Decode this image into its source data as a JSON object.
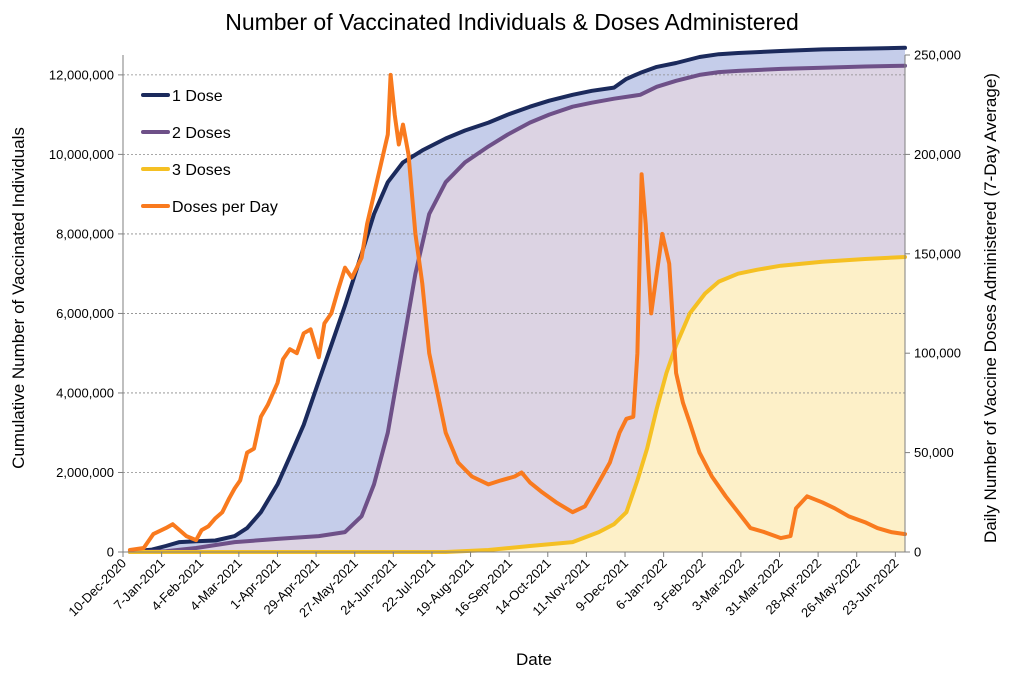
{
  "chart_data": {
    "type": "line",
    "title": "Number of Vaccinated Individuals & Doses Administered",
    "xlabel": "Date",
    "ylabel": "Cumulative Number of Vaccinated Individuals",
    "y2label": "Daily Number of Vaccine Doses Administered (7-Day Average)",
    "x_start": "10-Dec-2020",
    "x_end": "30-Jun-2022",
    "x_ticks": [
      "10-Dec-2020",
      "7-Jan-2021",
      "4-Feb-2021",
      "4-Mar-2021",
      "1-Apr-2021",
      "29-Apr-2021",
      "27-May-2021",
      "24-Jun-2021",
      "22-Jul-2021",
      "19-Aug-2021",
      "16-Sep-2021",
      "14-Oct-2021",
      "11-Nov-2021",
      "9-Dec-2021",
      "6-Jan-2022",
      "3-Feb-2022",
      "3-Mar-2022",
      "31-Mar-2022",
      "28-Apr-2022",
      "26-May-2022",
      "23-Jun-2022"
    ],
    "ylim": [
      0,
      12500000
    ],
    "y_ticks": [
      "0",
      "2,000,000",
      "4,000,000",
      "6,000,000",
      "8,000,000",
      "10,000,000",
      "12,000,000"
    ],
    "y_tick_values": [
      0,
      2000000,
      4000000,
      6000000,
      8000000,
      10000000,
      12000000
    ],
    "y2lim": [
      0,
      250000
    ],
    "y2_ticks": [
      "0",
      "50,000",
      "100,000",
      "150,000",
      "200,000",
      "250,000"
    ],
    "y2_tick_values": [
      0,
      50000,
      100000,
      150000,
      200000,
      250000
    ],
    "grid": "horizontal dotted (left axis)",
    "legend_position": "top-left",
    "series": [
      {
        "name": "1 Dose",
        "axis": "left",
        "color": "#1b2a5c",
        "fill": "#c5cdea",
        "x": [
          "2020-12-15",
          "2020-12-31",
          "2021-01-10",
          "2021-01-20",
          "2021-02-01",
          "2021-02-15",
          "2021-03-01",
          "2021-03-10",
          "2021-03-20",
          "2021-04-01",
          "2021-04-10",
          "2021-04-20",
          "2021-05-01",
          "2021-05-10",
          "2021-05-20",
          "2021-06-01",
          "2021-06-10",
          "2021-06-20",
          "2021-07-01",
          "2021-07-15",
          "2021-08-01",
          "2021-08-15",
          "2021-09-01",
          "2021-09-15",
          "2021-10-01",
          "2021-10-15",
          "2021-11-01",
          "2021-11-15",
          "2021-12-01",
          "2021-12-10",
          "2021-12-20",
          "2022-01-01",
          "2022-01-15",
          "2022-02-01",
          "2022-02-15",
          "2022-03-01",
          "2022-04-01",
          "2022-05-01",
          "2022-06-01",
          "2022-06-30"
        ],
        "values": [
          10000,
          60000,
          150000,
          250000,
          270000,
          290000,
          400000,
          600000,
          1000000,
          1700000,
          2400000,
          3200000,
          4300000,
          5200000,
          6200000,
          7500000,
          8500000,
          9300000,
          9800000,
          10100000,
          10400000,
          10600000,
          10800000,
          11000000,
          11200000,
          11350000,
          11500000,
          11600000,
          11680000,
          11900000,
          12050000,
          12200000,
          12300000,
          12450000,
          12520000,
          12550000,
          12600000,
          12640000,
          12660000,
          12680000
        ]
      },
      {
        "name": "2 Doses",
        "axis": "left",
        "color": "#6e5088",
        "fill": "#dcd3e3",
        "x": [
          "2020-12-15",
          "2021-01-10",
          "2021-02-01",
          "2021-03-01",
          "2021-04-01",
          "2021-05-01",
          "2021-05-20",
          "2021-06-01",
          "2021-06-10",
          "2021-06-20",
          "2021-07-01",
          "2021-07-10",
          "2021-07-20",
          "2021-08-01",
          "2021-08-15",
          "2021-09-01",
          "2021-09-15",
          "2021-10-01",
          "2021-10-15",
          "2021-11-01",
          "2021-11-15",
          "2021-12-01",
          "2021-12-20",
          "2022-01-01",
          "2022-01-15",
          "2022-02-01",
          "2022-02-15",
          "2022-03-01",
          "2022-04-01",
          "2022-05-01",
          "2022-06-01",
          "2022-06-30"
        ],
        "values": [
          0,
          20000,
          100000,
          250000,
          330000,
          400000,
          500000,
          900000,
          1700000,
          3000000,
          5200000,
          7000000,
          8500000,
          9300000,
          9800000,
          10200000,
          10500000,
          10800000,
          11000000,
          11200000,
          11300000,
          11400000,
          11500000,
          11700000,
          11850000,
          12000000,
          12070000,
          12100000,
          12150000,
          12180000,
          12210000,
          12230000
        ]
      },
      {
        "name": "3 Doses",
        "axis": "left",
        "color": "#f5c023",
        "fill": "#fdf0c8",
        "x": [
          "2020-12-15",
          "2021-08-01",
          "2021-09-01",
          "2021-10-01",
          "2021-11-01",
          "2021-11-20",
          "2021-12-01",
          "2021-12-10",
          "2021-12-18",
          "2021-12-25",
          "2022-01-01",
          "2022-01-08",
          "2022-01-15",
          "2022-01-25",
          "2022-02-05",
          "2022-02-15",
          "2022-03-01",
          "2022-03-15",
          "2022-04-01",
          "2022-05-01",
          "2022-06-01",
          "2022-06-30"
        ],
        "values": [
          0,
          0,
          50000,
          150000,
          250000,
          500000,
          700000,
          1000000,
          1800000,
          2600000,
          3600000,
          4500000,
          5200000,
          6000000,
          6500000,
          6800000,
          7000000,
          7100000,
          7200000,
          7300000,
          7370000,
          7420000
        ]
      },
      {
        "name": "Doses per Day",
        "axis": "right",
        "color": "#f97a1e",
        "x": [
          "2020-12-15",
          "2020-12-25",
          "2021-01-01",
          "2021-01-10",
          "2021-01-15",
          "2021-01-20",
          "2021-01-25",
          "2021-02-01",
          "2021-02-05",
          "2021-02-10",
          "2021-02-15",
          "2021-02-20",
          "2021-02-25",
          "2021-03-01",
          "2021-03-05",
          "2021-03-10",
          "2021-03-15",
          "2021-03-20",
          "2021-03-25",
          "2021-04-01",
          "2021-04-05",
          "2021-04-10",
          "2021-04-15",
          "2021-04-20",
          "2021-04-25",
          "2021-05-01",
          "2021-05-05",
          "2021-05-10",
          "2021-05-15",
          "2021-05-20",
          "2021-05-25",
          "2021-06-01",
          "2021-06-05",
          "2021-06-10",
          "2021-06-15",
          "2021-06-20",
          "2021-06-22",
          "2021-06-25",
          "2021-06-28",
          "2021-07-01",
          "2021-07-05",
          "2021-07-10",
          "2021-07-15",
          "2021-07-20",
          "2021-08-01",
          "2021-08-10",
          "2021-08-20",
          "2021-09-01",
          "2021-09-10",
          "2021-09-20",
          "2021-09-25",
          "2021-10-01",
          "2021-10-10",
          "2021-10-20",
          "2021-11-01",
          "2021-11-10",
          "2021-11-20",
          "2021-11-28",
          "2021-12-05",
          "2021-12-10",
          "2021-12-15",
          "2021-12-18",
          "2021-12-21",
          "2021-12-24",
          "2021-12-28",
          "2022-01-01",
          "2022-01-05",
          "2022-01-10",
          "2022-01-15",
          "2022-01-20",
          "2022-01-25",
          "2022-02-01",
          "2022-02-10",
          "2022-02-20",
          "2022-03-01",
          "2022-03-10",
          "2022-03-20",
          "2022-04-01",
          "2022-04-08",
          "2022-04-12",
          "2022-04-20",
          "2022-05-01",
          "2022-05-10",
          "2022-05-20",
          "2022-06-01",
          "2022-06-10",
          "2022-06-20",
          "2022-06-30"
        ],
        "values": [
          1000,
          2000,
          9000,
          12000,
          14000,
          11000,
          8000,
          6000,
          11000,
          13000,
          17000,
          20000,
          27000,
          32000,
          36000,
          50000,
          52000,
          68000,
          74000,
          85000,
          97000,
          102000,
          100000,
          110000,
          112000,
          98000,
          115000,
          120000,
          132000,
          143000,
          138000,
          148000,
          165000,
          180000,
          195000,
          210000,
          240000,
          220000,
          205000,
          215000,
          200000,
          160000,
          135000,
          100000,
          60000,
          45000,
          38000,
          34000,
          36000,
          38000,
          40000,
          35000,
          30000,
          25000,
          20000,
          23000,
          35000,
          45000,
          60000,
          67000,
          68000,
          100000,
          190000,
          165000,
          120000,
          140000,
          160000,
          145000,
          90000,
          75000,
          65000,
          50000,
          38000,
          28000,
          20000,
          12000,
          10000,
          7000,
          8000,
          22000,
          28000,
          25000,
          22000,
          18000,
          15000,
          12000,
          10000,
          9000
        ]
      }
    ]
  }
}
